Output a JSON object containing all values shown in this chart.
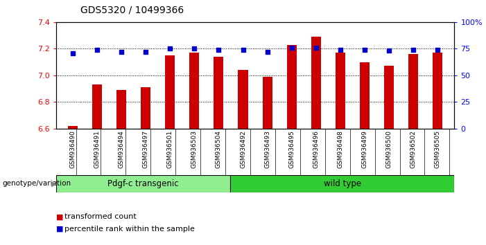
{
  "title": "GDS5320 / 10499366",
  "categories": [
    "GSM936490",
    "GSM936491",
    "GSM936494",
    "GSM936497",
    "GSM936501",
    "GSM936503",
    "GSM936504",
    "GSM936492",
    "GSM936493",
    "GSM936495",
    "GSM936496",
    "GSM936498",
    "GSM936499",
    "GSM936500",
    "GSM936502",
    "GSM936505"
  ],
  "bar_values": [
    6.62,
    6.93,
    6.89,
    6.91,
    7.15,
    7.17,
    7.14,
    7.04,
    6.99,
    7.23,
    7.29,
    7.17,
    7.1,
    7.07,
    7.16,
    7.17
  ],
  "dot_values": [
    71,
    74,
    72,
    72,
    75,
    75,
    74,
    74,
    72,
    76,
    76,
    74,
    74,
    73,
    74,
    74
  ],
  "bar_color": "#cc0000",
  "dot_color": "#0000cc",
  "ylim_left": [
    6.6,
    7.4
  ],
  "ylim_right": [
    0,
    100
  ],
  "yticks_left": [
    6.6,
    6.8,
    7.0,
    7.2,
    7.4
  ],
  "yticks_right": [
    0,
    25,
    50,
    75,
    100
  ],
  "group1_label": "Pdgf-c transgenic",
  "group1_count": 7,
  "group2_label": "wild type",
  "group2_count": 9,
  "group1_color": "#90ee90",
  "group2_color": "#32cd32",
  "genotype_label": "genotype/variation",
  "legend_bar_label": "transformed count",
  "legend_dot_label": "percentile rank within the sample",
  "background_color": "#ffffff",
  "plot_bg_color": "#ffffff",
  "tick_label_bg": "#c8c8c8"
}
